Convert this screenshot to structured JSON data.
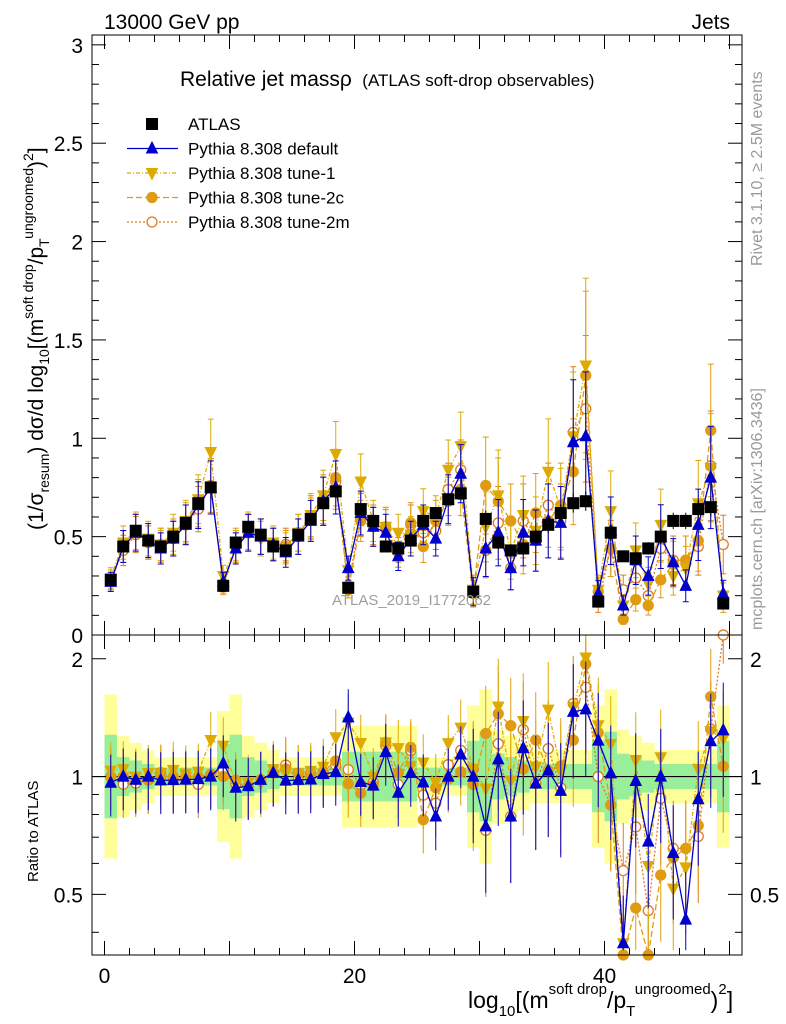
{
  "header": {
    "left": "13000 GeV pp",
    "right": "Jets"
  },
  "side_labels": {
    "rivet": "Rivet 3.1.10, ≥ 2.5M events",
    "mcplots": "mcplots.cern.ch [arXiv:1306.3436]"
  },
  "chart_data": {
    "type": "line",
    "title": "Relative jet massρ",
    "subtitle": "(ATLAS soft-drop observables)",
    "watermark": "ATLAS_2019_I1772062",
    "ylabel_parts": [
      "(1/σ",
      "resum",
      ") dσ/d log",
      "10",
      "[(m",
      "soft drop",
      "/p",
      "T",
      "ungroomed",
      ")",
      "2",
      "]"
    ],
    "xlabel_parts": [
      "log",
      "10",
      "[(m",
      "soft drop",
      "/p",
      "T",
      "ungroomed",
      ")",
      "2",
      "]"
    ],
    "ratio_ylabel": "Ratio to ATLAS",
    "xlim": [
      -1,
      51
    ],
    "ylim": [
      0,
      3.05
    ],
    "ratio_ylim": [
      0.35,
      2.3
    ],
    "ratio_scale": "log",
    "x_ticks": [
      "0",
      "20",
      "40"
    ],
    "y_ticks": [
      "0",
      "0.5",
      "1",
      "1.5",
      "2",
      "2.5",
      "3"
    ],
    "ratio_ticks": [
      "0.5",
      "1",
      "2"
    ],
    "legend_position": "top-left",
    "x": [
      0.5,
      1.5,
      2.5,
      3.5,
      4.5,
      5.5,
      6.5,
      7.5,
      8.5,
      9.5,
      10.5,
      11.5,
      12.5,
      13.5,
      14.5,
      15.5,
      16.5,
      17.5,
      18.5,
      19.5,
      20.5,
      21.5,
      22.5,
      23.5,
      24.5,
      25.5,
      26.5,
      27.5,
      28.5,
      29.5,
      30.5,
      31.5,
      32.5,
      33.5,
      34.5,
      35.5,
      36.5,
      37.5,
      38.5,
      39.5,
      40.5,
      41.5,
      42.5,
      43.5,
      44.5,
      45.5,
      46.5,
      47.5,
      48.5,
      49.5
    ],
    "series": [
      {
        "name": "ATLAS",
        "color": "#000000",
        "marker": "square",
        "dash": "none",
        "filled": true,
        "values": [
          0.28,
          0.45,
          0.53,
          0.48,
          0.45,
          0.5,
          0.57,
          0.67,
          0.75,
          0.25,
          0.47,
          0.55,
          0.51,
          0.45,
          0.43,
          0.51,
          0.59,
          0.67,
          0.73,
          0.24,
          0.64,
          0.58,
          0.45,
          0.44,
          0.48,
          0.58,
          0.62,
          0.69,
          0.72,
          0.22,
          0.59,
          0.47,
          0.43,
          0.44,
          0.5,
          0.56,
          0.62,
          0.67,
          0.68,
          0.17,
          0.52,
          0.4,
          0.39,
          0.44,
          0.5,
          0.58,
          0.58,
          0.64,
          0.65,
          0.16
        ]
      },
      {
        "name": "Pythia 8.308 default",
        "color": "#0000cc",
        "marker": "triangle-up",
        "dash": "none",
        "filled": true,
        "values": [
          0.27,
          0.45,
          0.52,
          0.48,
          0.44,
          0.49,
          0.56,
          0.66,
          0.75,
          0.27,
          0.44,
          0.52,
          0.5,
          0.46,
          0.42,
          0.5,
          0.58,
          0.68,
          0.75,
          0.34,
          0.62,
          0.55,
          0.52,
          0.4,
          0.49,
          0.56,
          0.49,
          0.69,
          0.82,
          0.22,
          0.44,
          0.52,
          0.34,
          0.52,
          0.48,
          0.58,
          0.57,
          0.98,
          1.01,
          0.21,
          0.53,
          0.15,
          0.38,
          0.3,
          0.5,
          0.37,
          0.25,
          0.56,
          0.8,
          0.21
        ]
      },
      {
        "name": "Pythia 8.308 tune-1",
        "color": "#ddaa00",
        "marker": "triangle-down",
        "dash": "4,2,1,2",
        "filled": true,
        "values": [
          0.29,
          0.47,
          0.53,
          0.49,
          0.46,
          0.52,
          0.58,
          0.69,
          0.93,
          0.3,
          0.45,
          0.53,
          0.49,
          0.47,
          0.44,
          0.52,
          0.61,
          0.71,
          0.92,
          0.33,
          0.78,
          0.58,
          0.55,
          0.52,
          0.51,
          0.63,
          0.6,
          0.84,
          0.96,
          0.23,
          0.55,
          0.71,
          0.42,
          0.61,
          0.53,
          0.83,
          0.64,
          1.01,
          1.37,
          0.23,
          0.63,
          0.15,
          0.43,
          0.26,
          0.56,
          0.3,
          0.34,
          0.67,
          0.85,
          0.2
        ]
      },
      {
        "name": "Pythia 8.308 tune-2c",
        "color": "#e09b10",
        "marker": "circle",
        "dash": "6,3",
        "filled": true,
        "values": [
          0.28,
          0.45,
          0.52,
          0.47,
          0.45,
          0.5,
          0.57,
          0.67,
          0.76,
          0.25,
          0.46,
          0.52,
          0.5,
          0.46,
          0.45,
          0.52,
          0.59,
          0.69,
          0.8,
          0.23,
          0.58,
          0.55,
          0.55,
          0.45,
          0.57,
          0.45,
          0.58,
          0.68,
          0.74,
          0.21,
          0.76,
          0.68,
          0.58,
          0.46,
          0.62,
          0.58,
          0.66,
          0.83,
          1.32,
          0.22,
          0.44,
          0.08,
          0.18,
          0.15,
          0.28,
          0.36,
          0.38,
          0.48,
          1.04,
          0.17
        ]
      },
      {
        "name": "Pythia 8.308 tune-2m",
        "color": "#e07a20",
        "marker": "circle",
        "dash": "2,2",
        "filled": false,
        "values": [
          0.28,
          0.43,
          0.51,
          0.47,
          0.46,
          0.49,
          0.56,
          0.64,
          0.76,
          0.26,
          0.45,
          0.52,
          0.5,
          0.46,
          0.46,
          0.5,
          0.6,
          0.68,
          0.78,
          0.25,
          0.61,
          0.56,
          0.54,
          0.42,
          0.56,
          0.52,
          0.53,
          0.74,
          0.84,
          0.23,
          0.43,
          0.57,
          0.34,
          0.58,
          0.48,
          0.66,
          0.58,
          1.03,
          1.15,
          0.17,
          0.44,
          0.23,
          0.29,
          0.2,
          0.44,
          0.38,
          0.38,
          0.45,
          0.86,
          0.46
        ]
      }
    ]
  }
}
